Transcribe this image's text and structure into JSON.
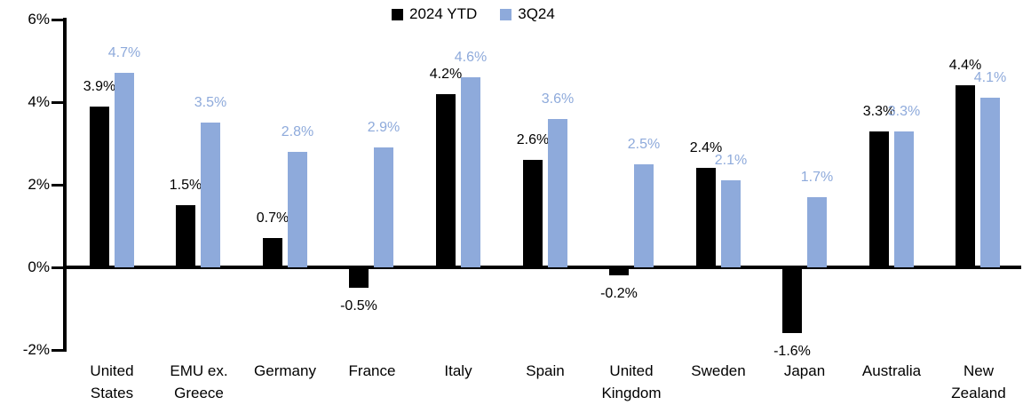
{
  "legend": {
    "position": "top-center",
    "items": [
      {
        "label": "2024 YTD",
        "color": "#000000"
      },
      {
        "label": "3Q24",
        "color": "#8EAADB"
      }
    ]
  },
  "chart_data": {
    "type": "bar",
    "title": "",
    "categories": [
      "United States",
      "EMU ex. Greece",
      "Germany",
      "France",
      "Italy",
      "Spain",
      "United Kingdom",
      "Sweden",
      "Japan",
      "Australia",
      "New Zealand"
    ],
    "series": [
      {
        "name": "2024 YTD",
        "color": "#000000",
        "label_color": "#000000",
        "values": [
          3.9,
          1.5,
          0.7,
          -0.5,
          4.2,
          2.6,
          -0.2,
          2.4,
          -1.6,
          3.3,
          4.4
        ]
      },
      {
        "name": "3Q24",
        "color": "#8EAADB",
        "label_color": "#8EAADB",
        "values": [
          4.7,
          3.5,
          2.8,
          2.9,
          4.6,
          3.6,
          2.5,
          2.1,
          1.7,
          3.3,
          4.1
        ]
      }
    ],
    "value_labels": [
      [
        "3.9%",
        "1.5%",
        "0.7%",
        "-0.5%",
        "4.2%",
        "2.6%",
        "-0.2%",
        "2.4%",
        "-1.6%",
        "3.3%",
        "4.4%"
      ],
      [
        "4.7%",
        "3.5%",
        "2.8%",
        "2.9%",
        "4.6%",
        "3.6%",
        "2.5%",
        "2.1%",
        "1.7%",
        "3.3%",
        "4.1%"
      ]
    ],
    "ylim": [
      -2,
      6
    ],
    "yticks": [
      {
        "value": 6,
        "label": "6%"
      },
      {
        "value": 4,
        "label": "4%"
      },
      {
        "value": 2,
        "label": "2%"
      },
      {
        "value": 0,
        "label": "0%"
      },
      {
        "value": -2,
        "label": "-2%"
      }
    ],
    "grid": false,
    "legend_position": "top-center",
    "xlabel": "",
    "ylabel": ""
  }
}
